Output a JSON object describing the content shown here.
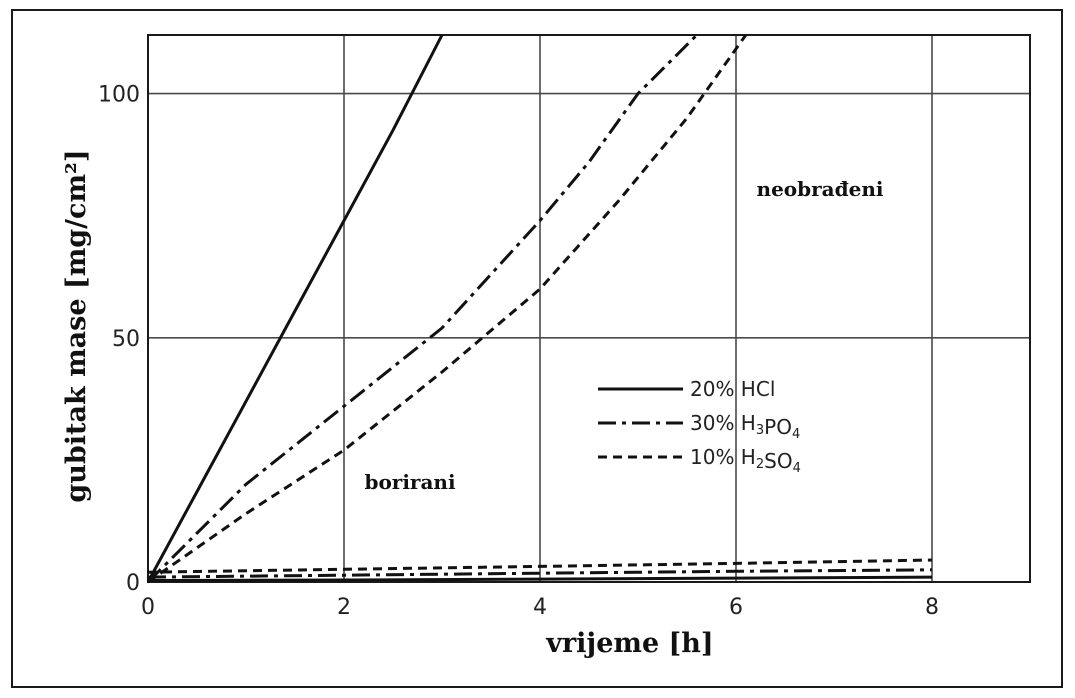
{
  "chart_data": {
    "type": "line",
    "xlabel": "vrijeme [h]",
    "ylabel": "gubitak mase [mg/cm²]",
    "xlim": [
      0,
      9
    ],
    "ylim": [
      0,
      112
    ],
    "xticks": [
      "0",
      "2",
      "4",
      "6",
      "8"
    ],
    "yticks": [
      "0",
      "50",
      "100"
    ],
    "grid": true,
    "annotations": {
      "upper_region": "neobrađeni",
      "lower_region": "borirani"
    },
    "legend_position": "lower-right",
    "series": [
      {
        "name": "20% HCl",
        "legend": {
          "pre": "20% HCl",
          "sub": "",
          "post": ""
        },
        "style": "solid",
        "group": "neobrađeni",
        "x": [
          0,
          0.5,
          1,
          1.5,
          2,
          2.5,
          3
        ],
        "y": [
          0,
          18.5,
          37,
          55.5,
          74,
          92.5,
          112
        ]
      },
      {
        "name": "30% H3PO4",
        "legend": {
          "pre": "30% H",
          "sub": "3",
          "post": "PO",
          "sub2": "4"
        },
        "style": "dashdot",
        "group": "neobrađeni",
        "x": [
          0,
          1,
          2,
          3,
          4,
          4.5,
          5,
          5.6
        ],
        "y": [
          0,
          20,
          36,
          52,
          74,
          86,
          100,
          112
        ]
      },
      {
        "name": "10% H2SO4",
        "legend": {
          "pre": "10% H",
          "sub": "2",
          "post": "SO",
          "sub2": "4"
        },
        "style": "dashed",
        "group": "neobrađeni",
        "x": [
          0,
          1,
          2,
          3,
          4,
          4.8,
          5.5,
          6.1
        ],
        "y": [
          0,
          14,
          27,
          43,
          60,
          78,
          95,
          112
        ]
      },
      {
        "name": "20% HCl",
        "style": "solid",
        "group": "borirani",
        "x": [
          0,
          2,
          4,
          6,
          8
        ],
        "y": [
          0.3,
          0.4,
          0.6,
          0.8,
          1.0
        ]
      },
      {
        "name": "30% H3PO4",
        "style": "dashdot",
        "group": "borirani",
        "x": [
          0,
          2,
          4,
          6,
          8
        ],
        "y": [
          1.0,
          1.4,
          1.8,
          2.2,
          2.5
        ]
      },
      {
        "name": "10% H2SO4",
        "style": "dashed",
        "group": "borirani",
        "x": [
          0,
          2,
          4,
          6,
          8
        ],
        "y": [
          2.0,
          2.6,
          3.2,
          3.8,
          4.5
        ]
      }
    ]
  },
  "colors": {
    "line": "#111111",
    "grid": "#4a4a4a",
    "frame": "#1a1a1a"
  }
}
